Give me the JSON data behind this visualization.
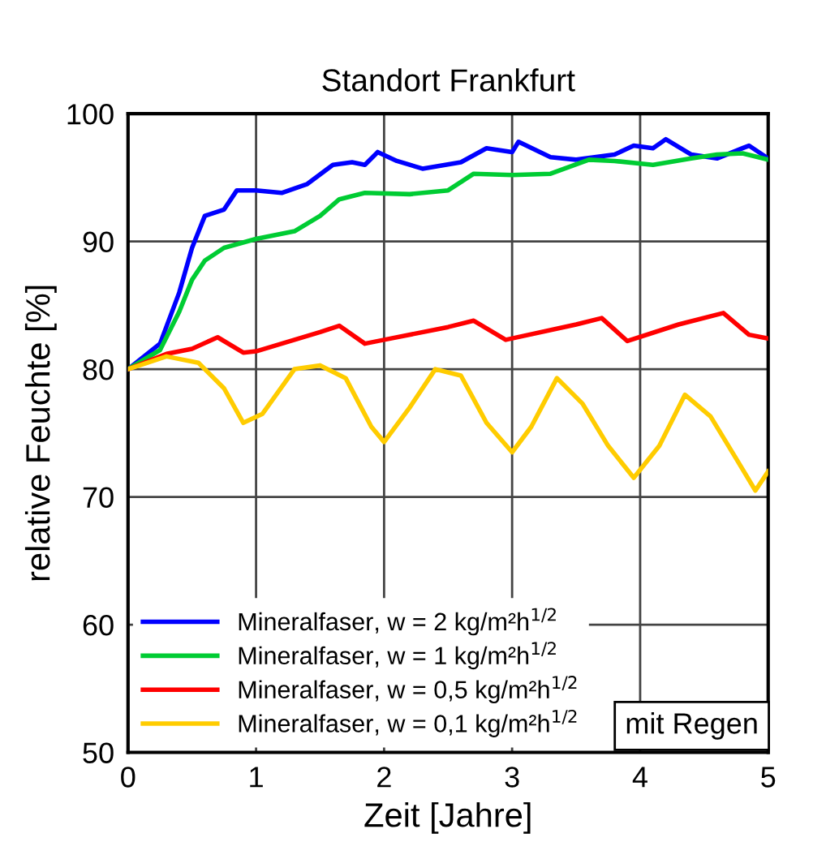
{
  "chart_data": {
    "type": "line",
    "title": "Standort Frankfurt",
    "xlabel": "Zeit [Jahre]",
    "ylabel": "relative Feuchte [%]",
    "annotations": [
      "mit Regen"
    ],
    "xlim": [
      0,
      5
    ],
    "ylim": [
      50,
      100
    ],
    "xticks": [
      0,
      1,
      2,
      3,
      4,
      5
    ],
    "yticks": [
      50,
      60,
      70,
      80,
      90,
      100
    ],
    "grid": true,
    "legend": "bottom left",
    "series": [
      {
        "name": "Mineralfaser, w = 2 kg/m²h$^{1/2}$",
        "color": "#0000ff",
        "x": [
          0,
          0.25,
          0.4,
          0.5,
          0.6,
          0.75,
          0.85,
          1.0,
          1.2,
          1.4,
          1.6,
          1.75,
          1.85,
          1.95,
          2.1,
          2.3,
          2.6,
          2.8,
          3.0,
          3.05,
          3.3,
          3.5,
          3.8,
          3.95,
          4.1,
          4.2,
          4.4,
          4.6,
          4.8,
          4.85,
          5.0
        ],
        "values": [
          80,
          82,
          86,
          89.5,
          92,
          92.5,
          94,
          94,
          93.8,
          94.5,
          96,
          96.2,
          96,
          97,
          96.3,
          95.7,
          96.2,
          97.3,
          97,
          97.8,
          96.6,
          96.4,
          96.8,
          97.5,
          97.3,
          98,
          96.8,
          96.5,
          97.3,
          97.5,
          96.5
        ]
      },
      {
        "name": "Mineralfaser, w = 1 kg/m²h$^{1/2}$",
        "color": "#00cc33",
        "x": [
          0,
          0.25,
          0.4,
          0.5,
          0.6,
          0.75,
          1.0,
          1.3,
          1.5,
          1.65,
          1.85,
          2.2,
          2.5,
          2.7,
          3.0,
          3.3,
          3.6,
          3.8,
          4.1,
          4.4,
          4.6,
          4.8,
          5.0
        ],
        "values": [
          80,
          81.5,
          84.5,
          87,
          88.5,
          89.5,
          90.2,
          90.8,
          92,
          93.3,
          93.8,
          93.7,
          94,
          95.3,
          95.2,
          95.3,
          96.4,
          96.3,
          96,
          96.5,
          96.8,
          96.9,
          96.4
        ]
      },
      {
        "name": "Mineralfaser, w = 0,5 kg/m²h$^{1/2}$",
        "color": "#ff0000",
        "x": [
          0,
          0.3,
          0.5,
          0.7,
          0.9,
          1.0,
          1.5,
          1.65,
          1.85,
          2.0,
          2.5,
          2.7,
          2.95,
          3.5,
          3.7,
          3.9,
          4.3,
          4.65,
          4.85,
          5.0
        ],
        "values": [
          80,
          81.2,
          81.6,
          82.5,
          81.3,
          81.4,
          82.9,
          83.4,
          82,
          82.3,
          83.3,
          83.8,
          82.3,
          83.5,
          84,
          82.2,
          83.5,
          84.4,
          82.7,
          82.4
        ]
      },
      {
        "name": "Mineralfaser, w = 0,1 kg/m²h$^{1/2}$",
        "color": "#ffcc00",
        "x": [
          0,
          0.3,
          0.55,
          0.75,
          0.9,
          1.05,
          1.3,
          1.5,
          1.7,
          1.9,
          2.0,
          2.2,
          2.4,
          2.6,
          2.8,
          3.0,
          3.15,
          3.35,
          3.55,
          3.75,
          3.95,
          4.15,
          4.35,
          4.55,
          4.75,
          4.9,
          5.0
        ],
        "values": [
          80,
          81,
          80.5,
          78.5,
          75.8,
          76.5,
          80,
          80.3,
          79.3,
          75.5,
          74.3,
          77,
          80,
          79.5,
          75.8,
          73.5,
          75.5,
          79.3,
          77.3,
          74,
          71.5,
          74,
          78,
          76.3,
          73,
          70.5,
          72
        ]
      }
    ]
  }
}
